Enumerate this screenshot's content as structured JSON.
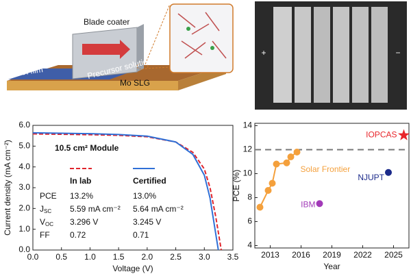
{
  "diagram": {
    "labels": {
      "coater": "Blade coater",
      "film": "Wet film",
      "solution": "Precursor solution",
      "substrate": "Mo SLG"
    },
    "photo": {
      "plus": "+",
      "minus": "−"
    }
  },
  "chart_data": [
    {
      "type": "line",
      "xlabel": "Voltage (V)",
      "ylabel": "Current density (mA cm⁻²)",
      "xlim": [
        0,
        3.5
      ],
      "ylim": [
        0,
        6
      ],
      "xticks": [
        {
          "value": 0,
          "label": "0.0"
        },
        {
          "value": 0.5,
          "label": "0.5"
        },
        {
          "value": 1,
          "label": "1.0"
        },
        {
          "value": 1.5,
          "label": "1.5"
        },
        {
          "value": 2,
          "label": "2.0"
        },
        {
          "value": 2.5,
          "label": "2.5"
        },
        {
          "value": 3,
          "label": "3.0"
        },
        {
          "value": 3.5,
          "label": "3.5"
        }
      ],
      "yticks": [
        {
          "value": 0,
          "label": "0.0"
        },
        {
          "value": 1,
          "label": "1.0"
        },
        {
          "value": 2,
          "label": "2.0"
        },
        {
          "value": 3,
          "label": "3.0"
        },
        {
          "value": 4,
          "label": "4.0"
        },
        {
          "value": 5,
          "label": "5.0"
        },
        {
          "value": 6,
          "label": "6.0"
        }
      ],
      "annotation": "10.5 cm² Module",
      "series": [
        {
          "name": "In lab",
          "color": "#e0242c",
          "dashed": true,
          "x": [
            0,
            0.5,
            1,
            1.5,
            2,
            2.5,
            2.8,
            3.0,
            3.1,
            3.2,
            3.296
          ],
          "values": [
            5.59,
            5.57,
            5.55,
            5.52,
            5.45,
            5.2,
            4.7,
            3.9,
            3.0,
            1.6,
            0
          ]
        },
        {
          "name": "Certified",
          "color": "#2f6fd6",
          "dashed": false,
          "x": [
            0,
            0.5,
            1,
            1.5,
            2,
            2.5,
            2.8,
            3.0,
            3.1,
            3.245
          ],
          "values": [
            5.64,
            5.62,
            5.6,
            5.56,
            5.48,
            5.2,
            4.6,
            3.6,
            2.5,
            0
          ]
        }
      ],
      "table": [
        [
          {
            "symbol": "PCE"
          },
          "13.2%",
          "13.0%"
        ],
        [
          {
            "symbol": "J",
            "sub": "SC"
          },
          "5.59 mA cm⁻²",
          "5.64 mA cm⁻²"
        ],
        [
          {
            "symbol": "V",
            "sub": "OC"
          },
          "3.296 V",
          "3.245 V"
        ],
        [
          {
            "symbol": "FF"
          },
          "0.72",
          "0.71"
        ]
      ]
    },
    {
      "type": "scatter",
      "xlabel": "Year",
      "ylabel": "PCE (%)",
      "xlim": [
        2011.5,
        2026.5
      ],
      "ylim": [
        3.8,
        14.2
      ],
      "xticks": [
        2013,
        2016,
        2019,
        2022,
        2025
      ],
      "yticks": [
        4,
        6,
        8,
        10,
        12,
        14
      ],
      "hline": 12,
      "series": [
        {
          "name": "Solar Frontier",
          "color": "#f4a03c",
          "line": true,
          "marker": "circle",
          "x": [
            2012,
            2012.8,
            2013.2,
            2013.6,
            2014.6,
            2015,
            2015.6
          ],
          "values": [
            7.2,
            8.6,
            9.2,
            10.8,
            10.9,
            11.4,
            11.8
          ]
        },
        {
          "name": "IBM",
          "color": "#a23ab8",
          "line": false,
          "marker": "circle",
          "x": [
            2017.8
          ],
          "values": [
            7.5
          ]
        },
        {
          "name": "NJUPT",
          "color": "#1b2a8a",
          "line": false,
          "marker": "circle",
          "x": [
            2024.5
          ],
          "values": [
            10.1
          ]
        },
        {
          "name": "IOPCAS",
          "color": "#e8262b",
          "line": false,
          "marker": "star",
          "x": [
            2026
          ],
          "values": [
            13.2
          ]
        }
      ]
    }
  ]
}
